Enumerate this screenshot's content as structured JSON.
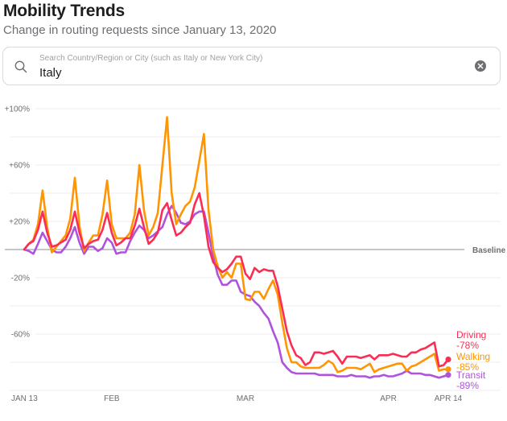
{
  "header": {
    "title": "Mobility Trends",
    "subtitle": "Change in routing requests since January 13, 2020"
  },
  "search": {
    "icon": "search-icon",
    "placeholder": "Search Country/Region or City (such as Italy or New York City)",
    "value": "Italy",
    "clear_icon": "clear-circle-icon"
  },
  "chart_data": {
    "type": "line",
    "title": "",
    "xlabel": "",
    "ylabel": "",
    "ylim": [
      -100,
      100
    ],
    "grid": true,
    "gridline_step": 20,
    "y_ticks": [
      {
        "value": 100,
        "label": "+100%"
      },
      {
        "value": 60,
        "label": "+60%"
      },
      {
        "value": 20,
        "label": "+20%"
      },
      {
        "value": -20,
        "label": "-20%"
      },
      {
        "value": -60,
        "label": "-60%"
      }
    ],
    "baseline": {
      "value": 0,
      "label": "Baseline"
    },
    "x_start_date": "2020-01-13",
    "x_ticks": [
      {
        "day": 0,
        "label": "JAN 13"
      },
      {
        "day": 19,
        "label": "FEB"
      },
      {
        "day": 48,
        "label": "MAR"
      },
      {
        "day": 79,
        "label": "APR"
      },
      {
        "day": 92,
        "label": "APR 14"
      }
    ],
    "x_range_days": [
      0,
      92
    ],
    "legend_placement": "right-end-of-lines",
    "series": [
      {
        "name": "Driving",
        "final_label": "-78%",
        "color": "#fa2d55",
        "values": [
          0,
          4,
          6,
          14,
          27,
          12,
          2,
          3,
          5,
          7,
          14,
          27,
          12,
          1,
          4,
          6,
          7,
          14,
          26,
          12,
          3,
          5,
          8,
          8,
          17,
          29,
          16,
          4,
          7,
          12,
          28,
          33,
          21,
          10,
          12,
          16,
          19,
          32,
          40,
          24,
          2,
          -9,
          -13,
          -16,
          -14,
          -10,
          -5,
          -5,
          -17,
          -21,
          -13,
          -16,
          -14,
          -15,
          -15,
          -26,
          -42,
          -58,
          -68,
          -75,
          -77,
          -82,
          -80,
          -73,
          -73,
          -74,
          -73,
          -72,
          -76,
          -81,
          -76,
          -76,
          -76,
          -77,
          -76,
          -75,
          -78,
          -75,
          -75,
          -75,
          -74,
          -75,
          -76,
          -76,
          -73,
          -73,
          -71,
          -70,
          -68,
          -66,
          -83,
          -82,
          -78
        ]
      },
      {
        "name": "Walking",
        "final_label": "-85%",
        "color": "#ff9500",
        "values": [
          0,
          4,
          7,
          18,
          42,
          16,
          -2,
          2,
          6,
          10,
          22,
          51,
          17,
          -1,
          5,
          10,
          10,
          25,
          49,
          18,
          8,
          8,
          8,
          12,
          25,
          60,
          28,
          10,
          16,
          26,
          60,
          94,
          40,
          18,
          25,
          31,
          34,
          44,
          63,
          82,
          28,
          0,
          -12,
          -20,
          -16,
          -20,
          -10,
          -10,
          -35,
          -36,
          -30,
          -30,
          -35,
          -28,
          -22,
          -32,
          -52,
          -70,
          -80,
          -80,
          -83,
          -84,
          -84,
          -84,
          -84,
          -82,
          -79,
          -81,
          -87,
          -86,
          -84,
          -84,
          -84,
          -85,
          -83,
          -81,
          -87,
          -85,
          -84,
          -83,
          -82,
          -81,
          -81,
          -86,
          -83,
          -82,
          -80,
          -78,
          -76,
          -74,
          -86,
          -85,
          -85
        ]
      },
      {
        "name": "Transit",
        "final_label": "-89%",
        "color": "#af52de",
        "values": [
          0,
          -1,
          -3,
          4,
          12,
          6,
          0,
          -2,
          -2,
          2,
          8,
          16,
          5,
          -3,
          2,
          2,
          -1,
          1,
          8,
          5,
          -3,
          -2,
          -2,
          6,
          12,
          17,
          14,
          8,
          10,
          13,
          16,
          25,
          31,
          26,
          19,
          18,
          20,
          25,
          27,
          27,
          12,
          -5,
          -18,
          -25,
          -25,
          -22,
          -22,
          -30,
          -32,
          -33,
          -37,
          -40,
          -45,
          -49,
          -58,
          -66,
          -80,
          -84,
          -87,
          -88,
          -88,
          -88,
          -88,
          -88,
          -89,
          -89,
          -89,
          -89,
          -90,
          -90,
          -90,
          -89,
          -90,
          -90,
          -90,
          -91,
          -90,
          -90,
          -89,
          -90,
          -90,
          -89,
          -88,
          -86,
          -88,
          -88,
          -88,
          -89,
          -89,
          -90,
          -91,
          -90,
          -89
        ]
      }
    ]
  }
}
